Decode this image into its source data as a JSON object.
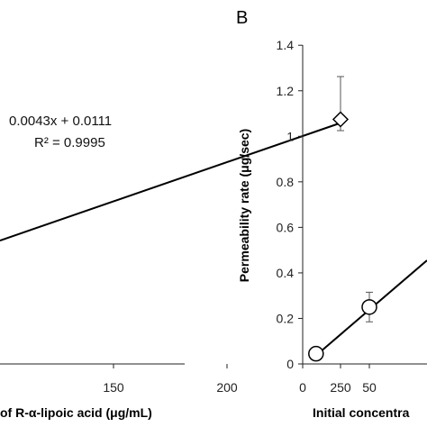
{
  "chart_data": [
    {
      "type": "scatter",
      "panel_label": "",
      "xlabel": "of R-α-lipoic acid (μg/mL)",
      "ylabel": "",
      "xticks": [
        "150",
        "200",
        "250"
      ],
      "xlim": [
        100,
        255
      ],
      "ylim": [
        0.0,
        1.4
      ],
      "points": [
        {
          "x": 250,
          "y": 1.086,
          "err": 0.26,
          "marker": "diamond"
        }
      ],
      "trendline": {
        "from_x": 100,
        "to_x": 250
      },
      "equation_label": "0.0043x + 0.0111",
      "r2_label": "R² = 0.9995",
      "grid": false
    },
    {
      "type": "scatter",
      "panel_label": "B",
      "xlabel": "Initial concentra",
      "ylabel": "Permeability rate (μg/sec)",
      "xticks": [
        "0",
        "50"
      ],
      "yticks": [
        "0",
        "0.2",
        "0.4",
        "0.6",
        "0.8",
        "1",
        "1.2",
        "1.4"
      ],
      "xlim": [
        0,
        150
      ],
      "ylim": [
        0,
        1.4
      ],
      "points": [
        {
          "x": 10,
          "y": 0.045,
          "err": 0.0,
          "marker": "circle"
        },
        {
          "x": 50,
          "y": 0.25,
          "err": 0.065,
          "marker": "circle"
        }
      ],
      "trendline": {
        "from_x": 10,
        "to_x": 150
      },
      "grid": false
    }
  ]
}
